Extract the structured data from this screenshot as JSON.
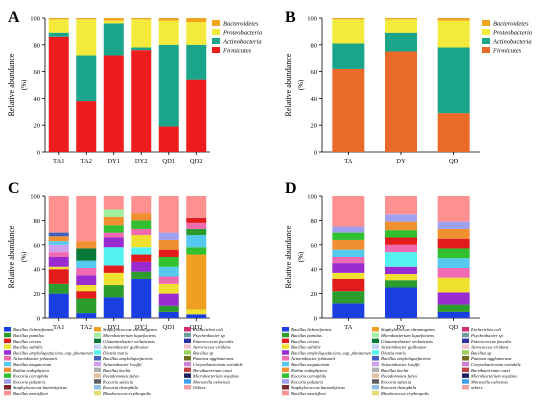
{
  "chart_data": [
    {
      "panel": "A",
      "type": "bar",
      "stacked": true,
      "ylabel": "Relative abundance",
      "ylabel_unit": "(%)",
      "ylim": [
        0,
        100
      ],
      "yticks": [
        0,
        20,
        40,
        60,
        80,
        100
      ],
      "categories": [
        "TA1",
        "TA2",
        "DY1",
        "DY2",
        "QD1",
        "QD2"
      ],
      "series": [
        {
          "name": "Firmicutes",
          "color": "#ee1c1c",
          "values": [
            86,
            38,
            72,
            76,
            19,
            54
          ]
        },
        {
          "name": "Actinobacteria",
          "color": "#1aa58a",
          "values": [
            3,
            34,
            24,
            2,
            61,
            26
          ]
        },
        {
          "name": "Proteobacteria",
          "color": "#f4ea3c",
          "values": [
            10,
            27,
            2,
            21,
            18,
            17
          ]
        },
        {
          "name": "Bacteroidetes",
          "color": "#f0a51e",
          "values": [
            1,
            1,
            2,
            1,
            2,
            3
          ]
        }
      ],
      "legend": [
        "Bacteroidetes",
        "Proteobacteria",
        "Actinobacteria",
        "Firmicutes"
      ]
    },
    {
      "panel": "B",
      "type": "bar",
      "stacked": true,
      "ylabel": "Relative abundance",
      "ylabel_unit": "(%)",
      "ylim": [
        0,
        100
      ],
      "yticks": [
        0,
        20,
        40,
        60,
        80,
        100
      ],
      "categories": [
        "TA",
        "DY",
        "QD"
      ],
      "series": [
        {
          "name": "Firmicutes",
          "color": "#ea6a2a",
          "values": [
            62,
            75,
            29
          ]
        },
        {
          "name": "Actinobacteria",
          "color": "#1aa58a",
          "values": [
            19,
            14,
            49
          ]
        },
        {
          "name": "Proteobacteria",
          "color": "#f4ea3c",
          "values": [
            18,
            10,
            20
          ]
        },
        {
          "name": "Bacteroidetes",
          "color": "#f0a51e",
          "values": [
            1,
            1,
            2
          ]
        }
      ],
      "legend": [
        "Bacteroidetes",
        "Proteobacteria",
        "Actinobacteria",
        "Firmicutes"
      ]
    },
    {
      "panel": "C",
      "type": "bar",
      "stacked": true,
      "ylabel": "Relative abundance",
      "ylabel_unit": "(%)",
      "ylim": [
        0,
        100
      ],
      "yticks": [
        0,
        20,
        40,
        60,
        80,
        100
      ],
      "categories": [
        "TA1",
        "TA2",
        "DY1",
        "DY2",
        "QD1",
        "QD2"
      ],
      "stacks": [
        [
          {
            "c": "#1a3ee0",
            "v": 20
          },
          {
            "c": "#2c9c2c",
            "v": 8
          },
          {
            "c": "#e21b1b",
            "v": 12
          },
          {
            "c": "#f0e030",
            "v": 2
          },
          {
            "c": "#9a2bd0",
            "v": 8
          },
          {
            "c": "#f06ab0",
            "v": 4
          },
          {
            "c": "#d0a0f0",
            "v": 6
          },
          {
            "c": "#55c9f0",
            "v": 3
          },
          {
            "c": "#f09030",
            "v": 4
          },
          {
            "c": "#4060c0",
            "v": 3
          },
          {
            "c": "#ff9090",
            "v": 30
          }
        ],
        [
          {
            "c": "#1a3ee0",
            "v": 4
          },
          {
            "c": "#2c9c2c",
            "v": 12
          },
          {
            "c": "#e21b1b",
            "v": 6
          },
          {
            "c": "#f0e030",
            "v": 5
          },
          {
            "c": "#9a2bd0",
            "v": 8
          },
          {
            "c": "#f06ab0",
            "v": 6
          },
          {
            "c": "#55c9f0",
            "v": 6
          },
          {
            "c": "#0a7a3a",
            "v": 10
          },
          {
            "c": "#f09030",
            "v": 6
          },
          {
            "c": "#ff9090",
            "v": 37
          }
        ],
        [
          {
            "c": "#1a3ee0",
            "v": 17
          },
          {
            "c": "#2c9c2c",
            "v": 10
          },
          {
            "c": "#f0e030",
            "v": 10
          },
          {
            "c": "#e21b1b",
            "v": 6
          },
          {
            "c": "#55f0f0",
            "v": 15
          },
          {
            "c": "#9a2bd0",
            "v": 8
          },
          {
            "c": "#f06ab0",
            "v": 4
          },
          {
            "c": "#30c030",
            "v": 6
          },
          {
            "c": "#f09030",
            "v": 7
          },
          {
            "c": "#a0f0a0",
            "v": 6
          },
          {
            "c": "#ff9090",
            "v": 11
          }
        ],
        [
          {
            "c": "#1a3ee0",
            "v": 32
          },
          {
            "c": "#2c9c2c",
            "v": 6
          },
          {
            "c": "#9a2bd0",
            "v": 8
          },
          {
            "c": "#e21b1b",
            "v": 6
          },
          {
            "c": "#55f0f0",
            "v": 6
          },
          {
            "c": "#f0e030",
            "v": 10
          },
          {
            "c": "#f06ab0",
            "v": 5
          },
          {
            "c": "#30c030",
            "v": 7
          },
          {
            "c": "#f09030",
            "v": 6
          },
          {
            "c": "#ff9090",
            "v": 14
          }
        ],
        [
          {
            "c": "#1a3ee0",
            "v": 5
          },
          {
            "c": "#2c9c2c",
            "v": 5
          },
          {
            "c": "#9a2bd0",
            "v": 10
          },
          {
            "c": "#f0e030",
            "v": 8
          },
          {
            "c": "#f06ab0",
            "v": 6
          },
          {
            "c": "#55c9f0",
            "v": 8
          },
          {
            "c": "#30c030",
            "v": 8
          },
          {
            "c": "#e21b1b",
            "v": 6
          },
          {
            "c": "#f09030",
            "v": 8
          },
          {
            "c": "#a0a0f0",
            "v": 6
          },
          {
            "c": "#ff9090",
            "v": 30
          }
        ],
        [
          {
            "c": "#1a3ee0",
            "v": 3
          },
          {
            "c": "#f0e030",
            "v": 4
          },
          {
            "c": "#f0a020",
            "v": 45
          },
          {
            "c": "#30c030",
            "v": 6
          },
          {
            "c": "#55c9f0",
            "v": 10
          },
          {
            "c": "#2c9c2c",
            "v": 5
          },
          {
            "c": "#f06ab0",
            "v": 5
          },
          {
            "c": "#e21b1b",
            "v": 4
          },
          {
            "c": "#ff9090",
            "v": 18
          }
        ]
      ]
    },
    {
      "panel": "D",
      "type": "bar",
      "stacked": true,
      "ylabel": "Relative abundance",
      "ylabel_unit": "(%)",
      "ylim": [
        0,
        100
      ],
      "yticks": [
        0,
        20,
        40,
        60,
        80,
        100
      ],
      "categories": [
        "TA",
        "DY",
        "QD"
      ],
      "stacks": [
        [
          {
            "c": "#1a3ee0",
            "v": 12
          },
          {
            "c": "#2c9c2c",
            "v": 10
          },
          {
            "c": "#e21b1b",
            "v": 10
          },
          {
            "c": "#f0e030",
            "v": 5
          },
          {
            "c": "#9a2bd0",
            "v": 8
          },
          {
            "c": "#f06ab0",
            "v": 5
          },
          {
            "c": "#55c9f0",
            "v": 6
          },
          {
            "c": "#f09030",
            "v": 8
          },
          {
            "c": "#30c030",
            "v": 6
          },
          {
            "c": "#a0a0f0",
            "v": 5
          },
          {
            "c": "#ff9090",
            "v": 25
          }
        ],
        [
          {
            "c": "#1a3ee0",
            "v": 25
          },
          {
            "c": "#2c9c2c",
            "v": 6
          },
          {
            "c": "#f0e030",
            "v": 5
          },
          {
            "c": "#9a2bd0",
            "v": 6
          },
          {
            "c": "#55f0f0",
            "v": 12
          },
          {
            "c": "#f06ab0",
            "v": 6
          },
          {
            "c": "#e21b1b",
            "v": 6
          },
          {
            "c": "#30c030",
            "v": 6
          },
          {
            "c": "#f09030",
            "v": 7
          },
          {
            "c": "#a0a0f0",
            "v": 6
          },
          {
            "c": "#ff9090",
            "v": 15
          }
        ],
        [
          {
            "c": "#1a3ee0",
            "v": 5
          },
          {
            "c": "#2c9c2c",
            "v": 6
          },
          {
            "c": "#9a2bd0",
            "v": 10
          },
          {
            "c": "#f0e030",
            "v": 12
          },
          {
            "c": "#f06ab0",
            "v": 8
          },
          {
            "c": "#55c9f0",
            "v": 8
          },
          {
            "c": "#30c030",
            "v": 8
          },
          {
            "c": "#e21b1b",
            "v": 8
          },
          {
            "c": "#f09030",
            "v": 8
          },
          {
            "c": "#a0a0f0",
            "v": 6
          },
          {
            "c": "#ff9090",
            "v": 21
          }
        ]
      ]
    }
  ],
  "species_legend": [
    {
      "label": "Bacillus licheniformis",
      "color": "#1a3ee0"
    },
    {
      "label": "Bacillus pumilus",
      "color": "#2c9c2c"
    },
    {
      "label": "Bacillus cereus",
      "color": "#e21b1b"
    },
    {
      "label": "Bacillus subtilis",
      "color": "#f0e030"
    },
    {
      "label": "Bacillus amyloliquefaciens_sup_plantarum",
      "color": "#9a2bd0"
    },
    {
      "label": "Acinetobacter johnsonii",
      "color": "#f06ab0"
    },
    {
      "label": "Bacillus megaterium",
      "color": "#55c9f0"
    },
    {
      "label": "Rothia endophytica",
      "color": "#f09030"
    },
    {
      "label": "Kocuria carniphila",
      "color": "#30c030"
    },
    {
      "label": "Kocuria palustris",
      "color": "#a0a0f0"
    },
    {
      "label": "Staphylococcus haemolyticus",
      "color": "#7a2a2a"
    },
    {
      "label": "Bacillus marisflavi",
      "color": "#ff9090"
    },
    {
      "label": "Staphylococcus chromogenes",
      "color": "#f0a020"
    },
    {
      "label": "Microbacterium liquefaciens",
      "color": "#a0f0a0"
    },
    {
      "label": "Glutamicibacter arilaitensis",
      "color": "#0a7a3a"
    },
    {
      "label": "Acinetobacter guillouiae",
      "color": "#c0d0f0"
    },
    {
      "label": "Dietzia maris",
      "color": "#55f0f0"
    },
    {
      "label": "Bacillus amyloliquefaciens",
      "color": "#4060c0"
    },
    {
      "label": "Acinetobacter lwoffii",
      "color": "#d0a0f0"
    },
    {
      "label": "Bacillus kochii",
      "color": "#b0b0b0"
    },
    {
      "label": "Pseudomonas fulva",
      "color": "#e0c0a0"
    },
    {
      "label": "Kocuria salsicia",
      "color": "#606060"
    },
    {
      "label": "Kocuria rhizophila",
      "color": "#90c0e0"
    },
    {
      "label": "Rhodococcus erythropolis",
      "color": "#e0e070"
    },
    {
      "label": "Escherichia coli",
      "color": "#d03070"
    },
    {
      "label": "Psychrobacter sp",
      "color": "#70a0a0"
    },
    {
      "label": "Enterococcus faecalis",
      "color": "#3030a0"
    },
    {
      "label": "Aerococcus viridans",
      "color": "#f0c0d0"
    },
    {
      "label": "Bacillus sp",
      "color": "#a0d060"
    },
    {
      "label": "Pantoea agglomerans",
      "color": "#707020"
    },
    {
      "label": "Corynebacterium variabile",
      "color": "#d080d0"
    },
    {
      "label": "Brevibacterium casei",
      "color": "#c04040"
    },
    {
      "label": "Microbacterium oxydans",
      "color": "#202060"
    },
    {
      "label": "Moraxella osloensis",
      "color": "#40a0f0"
    },
    {
      "label": "Others",
      "color": "#f0a0a0"
    }
  ],
  "species_legend_D_last": "others"
}
